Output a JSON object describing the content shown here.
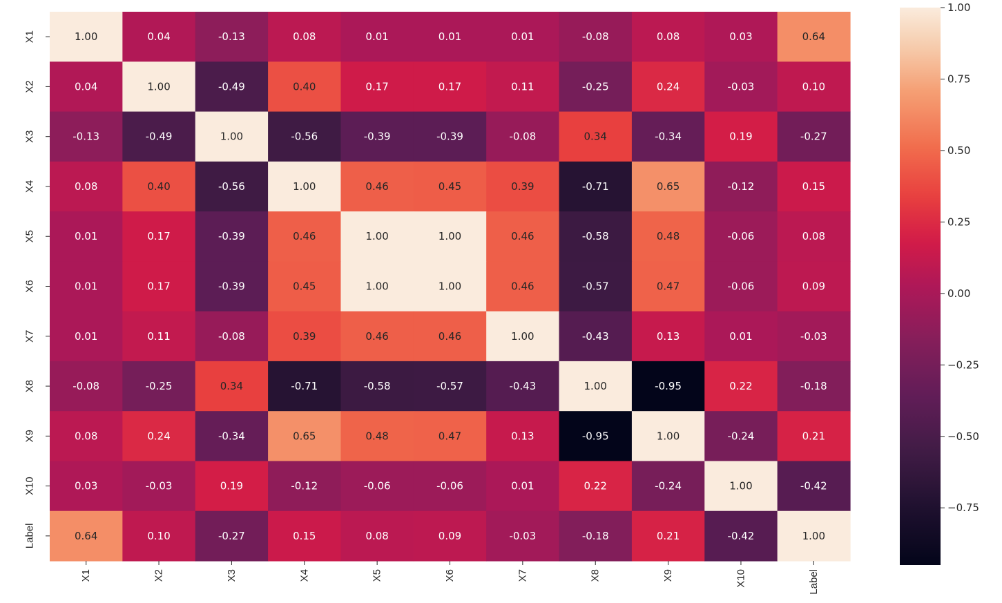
{
  "chart_data": {
    "type": "heatmap",
    "title": "",
    "xlabel": "",
    "ylabel": "",
    "x_labels": [
      "X1",
      "X2",
      "X3",
      "X4",
      "X5",
      "X6",
      "X7",
      "X8",
      "X9",
      "X10",
      "Label"
    ],
    "y_labels": [
      "X1",
      "X2",
      "X3",
      "X4",
      "X5",
      "X6",
      "X7",
      "X8",
      "X9",
      "X10",
      "Label"
    ],
    "values": [
      [
        1.0,
        0.04,
        -0.13,
        0.08,
        0.01,
        0.01,
        0.01,
        -0.08,
        0.08,
        0.03,
        0.64
      ],
      [
        0.04,
        1.0,
        -0.49,
        0.4,
        0.17,
        0.17,
        0.11,
        -0.25,
        0.24,
        -0.03,
        0.1
      ],
      [
        -0.13,
        -0.49,
        1.0,
        -0.56,
        -0.39,
        -0.39,
        -0.08,
        0.34,
        -0.34,
        0.19,
        -0.27
      ],
      [
        0.08,
        0.4,
        -0.56,
        1.0,
        0.46,
        0.45,
        0.39,
        -0.71,
        0.65,
        -0.12,
        0.15
      ],
      [
        0.01,
        0.17,
        -0.39,
        0.46,
        1.0,
        1.0,
        0.46,
        -0.58,
        0.48,
        -0.06,
        0.08
      ],
      [
        0.01,
        0.17,
        -0.39,
        0.45,
        1.0,
        1.0,
        0.46,
        -0.57,
        0.47,
        -0.06,
        0.09
      ],
      [
        0.01,
        0.11,
        -0.08,
        0.39,
        0.46,
        0.46,
        1.0,
        -0.43,
        0.13,
        0.01,
        -0.03
      ],
      [
        -0.08,
        -0.25,
        0.34,
        -0.71,
        -0.58,
        -0.57,
        -0.43,
        1.0,
        -0.95,
        0.22,
        -0.18
      ],
      [
        0.08,
        0.24,
        -0.34,
        0.65,
        0.48,
        0.47,
        0.13,
        -0.95,
        1.0,
        -0.24,
        0.21
      ],
      [
        0.03,
        -0.03,
        0.19,
        -0.12,
        -0.06,
        -0.06,
        0.01,
        0.22,
        -0.24,
        1.0,
        -0.42
      ],
      [
        0.64,
        0.1,
        -0.27,
        0.15,
        0.08,
        0.09,
        -0.03,
        -0.18,
        0.21,
        -0.42,
        1.0
      ]
    ],
    "value_format": "2 decimals",
    "colormap": "rocket",
    "color_range": [
      -0.95,
      1.0
    ],
    "colorbar": {
      "ticks": [
        1.0,
        0.75,
        0.5,
        0.25,
        0.0,
        -0.25,
        -0.5,
        -0.75
      ],
      "tick_labels": [
        "1.00",
        "0.75",
        "0.50",
        "0.25",
        "0.00",
        "−0.25",
        "−0.50",
        "−0.75"
      ],
      "placement": "right"
    },
    "annotations_visible": true,
    "x_tick_rotation": "vertical",
    "y_tick_rotation": "vertical"
  }
}
